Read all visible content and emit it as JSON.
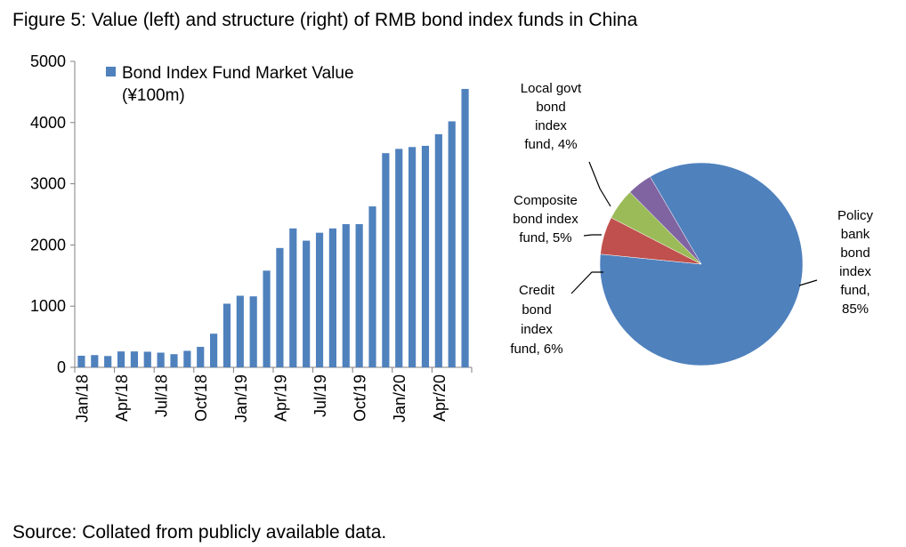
{
  "title": "Figure 5: Value (left) and structure (right) of RMB bond index funds in China",
  "source": "Source: Collated from publicly available data.",
  "chart_data": [
    {
      "type": "bar",
      "title": "",
      "xlabel": "",
      "ylabel": "",
      "ylim": [
        0,
        5000
      ],
      "yticks": [
        0,
        1000,
        2000,
        3000,
        4000,
        5000
      ],
      "grid": false,
      "legend_position": "top-left",
      "color": "#4F81BD",
      "x_tick_labels": [
        "Jan/18",
        "Apr/18",
        "Jul/18",
        "Oct/18",
        "Jan/19",
        "Apr/19",
        "Jul/19",
        "Oct/19",
        "Jan/20",
        "Apr/20"
      ],
      "categories": [
        "Jan/18",
        "Feb/18",
        "Mar/18",
        "Apr/18",
        "May/18",
        "Jun/18",
        "Jul/18",
        "Aug/18",
        "Sep/18",
        "Oct/18",
        "Nov/18",
        "Dec/18",
        "Jan/19",
        "Feb/19",
        "Mar/19",
        "Apr/19",
        "May/19",
        "Jun/19",
        "Jul/19",
        "Aug/19",
        "Sep/19",
        "Oct/19",
        "Nov/19",
        "Dec/19",
        "Jan/20",
        "Feb/20",
        "Mar/20",
        "Apr/20",
        "May/20",
        "Jun/20"
      ],
      "series": [
        {
          "name": "Bond Index Fund Market Value (¥100m)",
          "legend_lines": [
            "Bond Index Fund Market Value",
            "(¥100m)"
          ],
          "values": [
            190,
            200,
            185,
            260,
            260,
            255,
            240,
            215,
            270,
            335,
            550,
            1040,
            1170,
            1160,
            1580,
            1950,
            2270,
            2070,
            2200,
            2270,
            2340,
            2340,
            2630,
            3500,
            3570,
            3600,
            3620,
            3810,
            4020,
            4550
          ]
        }
      ]
    },
    {
      "type": "pie",
      "title": "",
      "slices": [
        {
          "label_lines": [
            "Policy",
            "bank",
            "bond",
            "index",
            "fund,",
            "85%"
          ],
          "label": "Policy bank bond index fund",
          "value": 85,
          "color": "#4F81BD"
        },
        {
          "label_lines": [
            "Credit",
            "bond",
            "index",
            "fund, 6%"
          ],
          "label": "Credit bond index fund",
          "value": 6,
          "color": "#C0504D"
        },
        {
          "label_lines": [
            "Composite",
            "bond index",
            "fund, 5%"
          ],
          "label": "Composite bond index fund",
          "value": 5,
          "color": "#9BBB59"
        },
        {
          "label_lines": [
            "Local govt",
            "bond",
            "index",
            "fund, 4%"
          ],
          "label": "Local govt bond index fund",
          "value": 4,
          "color": "#8064A2"
        }
      ]
    }
  ]
}
